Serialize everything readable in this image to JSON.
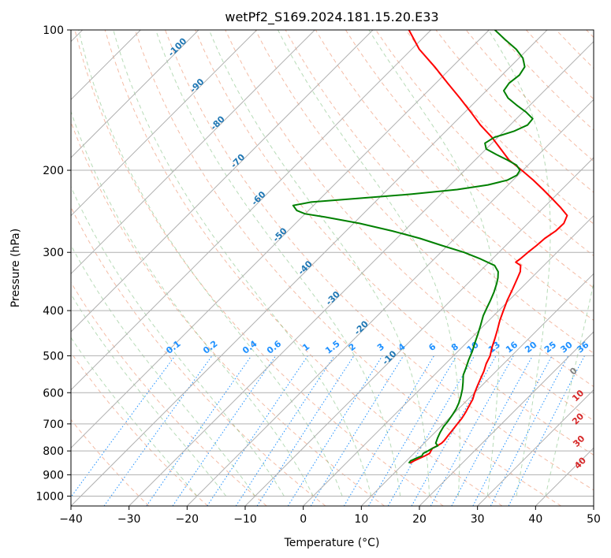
{
  "chart_data": {
    "type": "skew-t",
    "title": "wetPf2_S169.2024.181.15.20.E33",
    "xlabel": "Temperature (°C)",
    "ylabel": "Pressure (hPa)",
    "xlim": [
      -40,
      50
    ],
    "ylim": [
      1050,
      100
    ],
    "x_ticks": [
      -40,
      -30,
      -20,
      -10,
      0,
      10,
      20,
      30,
      40,
      50
    ],
    "y_ticks": [
      100,
      200,
      300,
      400,
      500,
      600,
      700,
      800,
      900,
      1000
    ],
    "grid": true,
    "series": [
      {
        "color": "#ff0000",
        "points": [
          [
            850,
            11
          ],
          [
            840,
            11.3
          ],
          [
            830,
            11.8
          ],
          [
            820,
            12.3
          ],
          [
            810,
            12.7
          ],
          [
            800,
            12.5
          ],
          [
            790,
            12.3
          ],
          [
            780,
            12.7
          ],
          [
            770,
            13
          ],
          [
            760,
            13
          ],
          [
            740,
            12.8
          ],
          [
            720,
            12.6
          ],
          [
            700,
            12.4
          ],
          [
            680,
            12.2
          ],
          [
            660,
            11.8
          ],
          [
            640,
            11.3
          ],
          [
            620,
            10.8
          ],
          [
            600,
            10
          ],
          [
            580,
            9.3
          ],
          [
            560,
            8.6
          ],
          [
            540,
            7.9
          ],
          [
            520,
            7
          ],
          [
            500,
            6.3
          ],
          [
            480,
            5.2
          ],
          [
            460,
            4.2
          ],
          [
            440,
            3.1
          ],
          [
            420,
            1.9
          ],
          [
            400,
            0.8
          ],
          [
            380,
            -0.3
          ],
          [
            360,
            -1.3
          ],
          [
            340,
            -2.4
          ],
          [
            330,
            -3
          ],
          [
            320,
            -4
          ],
          [
            315,
            -5.4
          ],
          [
            310,
            -5.2
          ],
          [
            300,
            -5
          ],
          [
            290,
            -4.7
          ],
          [
            280,
            -4.5
          ],
          [
            270,
            -3.9
          ],
          [
            260,
            -3.8
          ],
          [
            250,
            -4.6
          ],
          [
            240,
            -7.2
          ],
          [
            230,
            -10.1
          ],
          [
            220,
            -13.2
          ],
          [
            210,
            -16.5
          ],
          [
            200,
            -20.2
          ],
          [
            190,
            -24.2
          ],
          [
            180,
            -27.5
          ],
          [
            170,
            -31
          ],
          [
            160,
            -35.1
          ],
          [
            150,
            -39
          ],
          [
            140,
            -43.3
          ],
          [
            130,
            -48
          ],
          [
            120,
            -53
          ],
          [
            110,
            -58.7
          ],
          [
            100,
            -63.8
          ]
        ]
      },
      {
        "color": "#008000",
        "points": [
          [
            850,
            10.8
          ],
          [
            840,
            10.7
          ],
          [
            830,
            11.2
          ],
          [
            820,
            11.8
          ],
          [
            810,
            11.6
          ],
          [
            800,
            12
          ],
          [
            790,
            12.3
          ],
          [
            780,
            12.8
          ],
          [
            770,
            12
          ],
          [
            750,
            11.4
          ],
          [
            730,
            10.9
          ],
          [
            710,
            10.5
          ],
          [
            690,
            10.3
          ],
          [
            670,
            10
          ],
          [
            650,
            9.6
          ],
          [
            630,
            9
          ],
          [
            610,
            8.2
          ],
          [
            590,
            7.3
          ],
          [
            570,
            6.2
          ],
          [
            550,
            5
          ],
          [
            530,
            4.2
          ],
          [
            510,
            3.3
          ],
          [
            490,
            2.5
          ],
          [
            470,
            1.5
          ],
          [
            450,
            0.5
          ],
          [
            430,
            -0.6
          ],
          [
            410,
            -1.8
          ],
          [
            395,
            -2.5
          ],
          [
            380,
            -3.2
          ],
          [
            365,
            -4
          ],
          [
            350,
            -5
          ],
          [
            340,
            -5.8
          ],
          [
            330,
            -6.8
          ],
          [
            320,
            -8.5
          ],
          [
            310,
            -12
          ],
          [
            300,
            -16
          ],
          [
            290,
            -21
          ],
          [
            280,
            -26
          ],
          [
            270,
            -32
          ],
          [
            260,
            -39
          ],
          [
            252,
            -46
          ],
          [
            248,
            -50
          ],
          [
            244,
            -52
          ],
          [
            238,
            -53.5
          ],
          [
            234,
            -51
          ],
          [
            230,
            -44
          ],
          [
            225,
            -35
          ],
          [
            220,
            -28
          ],
          [
            215,
            -23.5
          ],
          [
            210,
            -21
          ],
          [
            205,
            -20.2
          ],
          [
            200,
            -20.5
          ],
          [
            195,
            -22
          ],
          [
            190,
            -24.5
          ],
          [
            185,
            -27.3
          ],
          [
            180,
            -30
          ],
          [
            175,
            -31.2
          ],
          [
            170,
            -30.6
          ],
          [
            165,
            -28.3
          ],
          [
            160,
            -27
          ],
          [
            155,
            -27.2
          ],
          [
            150,
            -29.5
          ],
          [
            145,
            -32.3
          ],
          [
            140,
            -35
          ],
          [
            135,
            -37
          ],
          [
            130,
            -37.4
          ],
          [
            125,
            -37
          ],
          [
            120,
            -37.5
          ],
          [
            115,
            -39.3
          ],
          [
            110,
            -42
          ],
          [
            105,
            -45.5
          ],
          [
            100,
            -49
          ]
        ]
      }
    ],
    "dry_adiabat_labels": [
      "-100",
      "-90",
      "-80",
      "-70",
      "-60",
      "-50",
      "-40",
      "-30",
      "-20",
      "-10"
    ],
    "moist_adiabat_labels": [
      "0",
      "10",
      "20",
      "30",
      "40"
    ],
    "mixing_ratio_labels": [
      "0.1",
      "0.2",
      "0.4",
      "0.6",
      "1",
      "1.5",
      "2",
      "3",
      "4",
      "6",
      "8",
      "10",
      "13",
      "16",
      "20",
      "25",
      "30",
      "36"
    ]
  }
}
